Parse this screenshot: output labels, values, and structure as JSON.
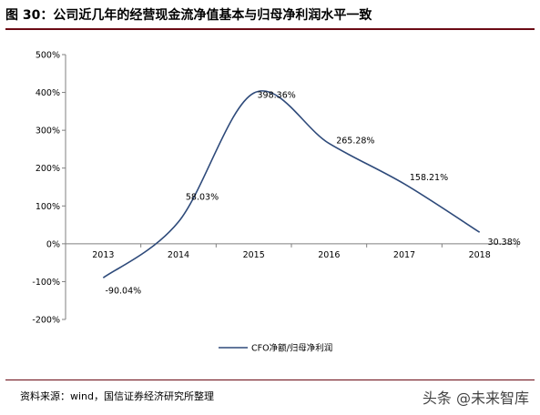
{
  "header": {
    "title": "图 30：公司近几年的经营现金流净值基本与归母净利润水平一致"
  },
  "footer": {
    "source": "资料来源：wind，国信证券经济研究所整理",
    "watermark": "头条 @未来智库"
  },
  "chart_data": {
    "type": "line",
    "categories": [
      "2013",
      "2014",
      "2015",
      "2016",
      "2017",
      "2018"
    ],
    "series": [
      {
        "name": "CFO净额/归母净利润",
        "values": [
          -90.04,
          58.03,
          398.36,
          265.28,
          158.21,
          30.38
        ],
        "labels": [
          "-90.04%",
          "58.03%",
          "398.36%",
          "265.28%",
          "158.21%",
          "30.38%"
        ]
      }
    ],
    "y_ticks": [
      -200,
      -100,
      0,
      100,
      200,
      300,
      400,
      500
    ],
    "y_tick_labels": [
      "-200%",
      "-100%",
      "0%",
      "100%",
      "200%",
      "300%",
      "400%",
      "500%"
    ],
    "ylim": [
      -200,
      500
    ],
    "grid": false,
    "legend": "bottom-center",
    "line_color": "#2e4a7a"
  }
}
